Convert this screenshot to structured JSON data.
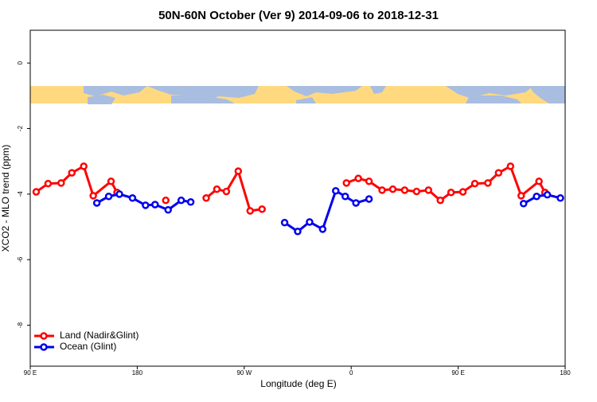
{
  "chart_data": {
    "type": "line",
    "title": "50N-60N October (Ver 9)   2014-09-06 to 2018-12-31",
    "x_label": "Longitude (deg E)",
    "y_label": "XCO2 - MLO trend (ppm)",
    "xlim": [
      90,
      540
    ],
    "ylim": [
      -9.25,
      1
    ],
    "xticks": [
      {
        "value": 90,
        "label": "90 E"
      },
      180,
      {
        "value": 270,
        "label": "90 W"
      },
      {
        "value": 360,
        "label": "0"
      },
      {
        "value": 450,
        "label": "90 E"
      },
      {
        "value": 540,
        "label": "180"
      }
    ],
    "yticks": [
      0,
      -2,
      -4,
      -6,
      -8
    ],
    "legend": "bottom-left",
    "series": [
      {
        "name": "Land (Nadir&Glint)",
        "color": "#ff0000",
        "x": [
          95,
          105,
          116,
          125,
          135,
          143,
          158,
          163,
          null,
          204,
          null,
          238,
          247,
          255,
          265,
          275,
          285,
          null,
          356,
          366,
          375,
          386,
          395,
          405,
          415,
          425,
          435,
          444,
          454,
          464,
          475,
          484,
          494,
          503,
          518,
          523
        ],
        "values": [
          -3.93,
          -3.68,
          -3.66,
          -3.35,
          -3.15,
          -4.05,
          -3.61,
          -3.95,
          null,
          -4.19,
          null,
          -4.12,
          -3.85,
          -3.92,
          -3.3,
          -4.51,
          -4.46,
          null,
          -3.66,
          -3.52,
          -3.61,
          -3.88,
          -3.85,
          -3.88,
          -3.92,
          -3.88,
          -4.19,
          -3.95,
          -3.93,
          -3.68,
          -3.66,
          -3.35,
          -3.15,
          -4.05,
          -3.61,
          -3.95
        ]
      },
      {
        "name": "Ocean (Glint)",
        "color": "#0000ee",
        "x": [
          146,
          156,
          165,
          176,
          187,
          195,
          206,
          217,
          225,
          null,
          304,
          315,
          325,
          336,
          347,
          355,
          364,
          375,
          null,
          505,
          516,
          525,
          536
        ],
        "values": [
          -4.27,
          -4.07,
          -4.0,
          -4.12,
          -4.34,
          -4.32,
          -4.48,
          -4.19,
          -4.24,
          null,
          -4.87,
          -5.14,
          -4.85,
          -5.07,
          -3.9,
          -4.07,
          -4.27,
          -4.15,
          null,
          -4.29,
          -4.07,
          -4.02,
          -4.12
        ]
      }
    ]
  }
}
